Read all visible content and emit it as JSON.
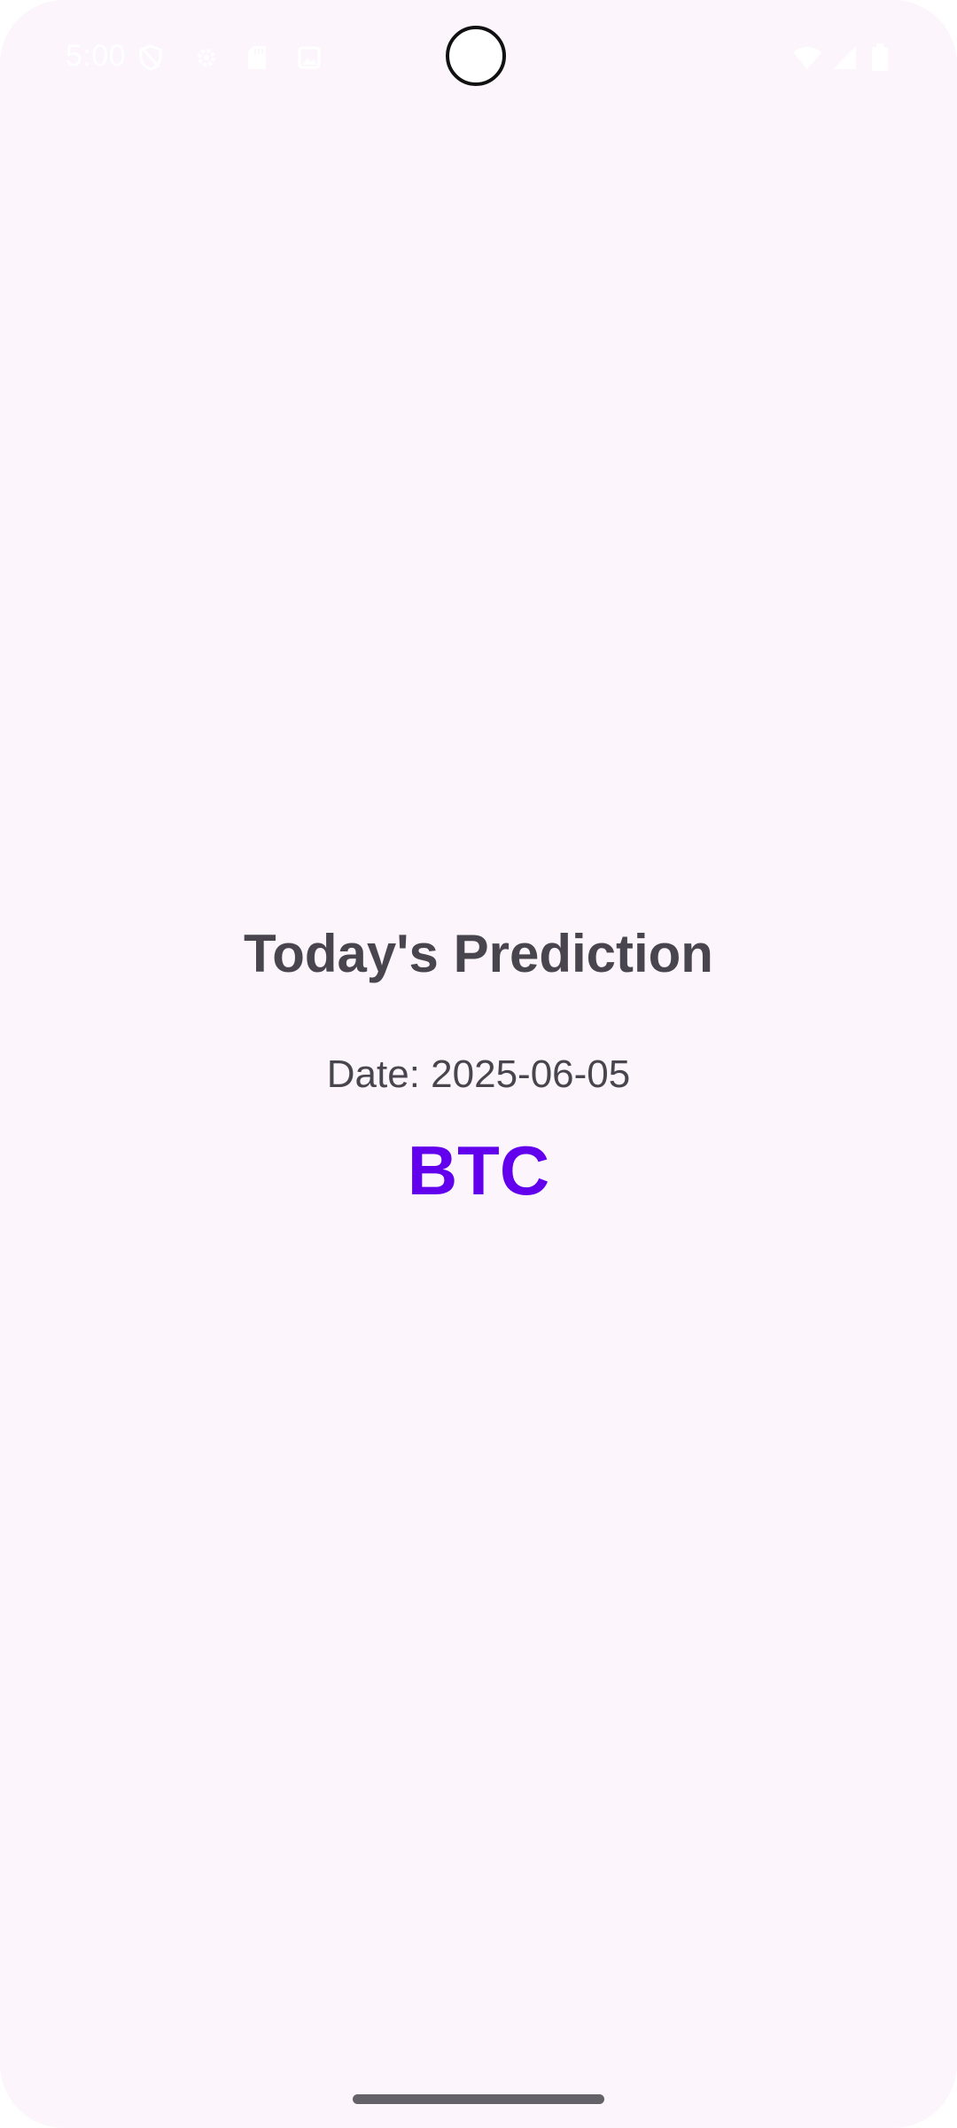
{
  "status_bar": {
    "time": "5:00",
    "left_icons": [
      "shield-icon",
      "settings-gear-icon",
      "sd-card-icon",
      "image-icon"
    ],
    "right_icons": [
      "wifi-icon",
      "signal-icon",
      "battery-icon"
    ],
    "icon_color": "#ffffff"
  },
  "main": {
    "title": "Today's Prediction",
    "date": "Date: 2025-06-05",
    "ticker": "BTC"
  },
  "colors": {
    "background": "#fcf5fc",
    "text": "#48454e",
    "accent": "#6200ee",
    "home_indicator": "#646169"
  }
}
